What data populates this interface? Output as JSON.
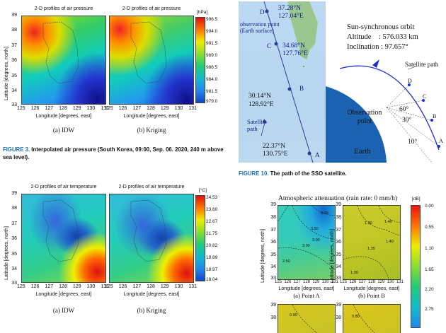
{
  "fig3": {
    "plot_title": "2-D profiles of air pressure",
    "unit": "[hPa]",
    "colorbar_ticks": [
      "996.5",
      "994.0",
      "991.5",
      "989.0",
      "986.5",
      "984.0",
      "981.5",
      "979.0"
    ],
    "y_ticks": [
      "39",
      "38",
      "37",
      "36",
      "35",
      "34",
      "33"
    ],
    "x_ticks": [
      "125",
      "126",
      "127",
      "128",
      "129",
      "130",
      "131"
    ],
    "ylabel": "Latitude [degrees, north]",
    "xlabel": "Longitude [degrees, east]",
    "sub_a": "(a) IDW",
    "sub_b": "(b) Kriging",
    "caption_label": "FIGURE 3.",
    "caption_text": "Interpolated air pressure (South Korea, 09:00, Sep. 06. 2020, 240 m above sea level)."
  },
  "fig4": {
    "plot_title": "2-D profiles of air temperature",
    "unit": "[°C]",
    "colorbar_ticks": [
      "24.53",
      "23.60",
      "22.67",
      "21.75",
      "20.82",
      "19.89",
      "18.97",
      "18.04"
    ],
    "y_ticks": [
      "39",
      "38",
      "37",
      "36",
      "35",
      "34",
      "33"
    ],
    "x_ticks": [
      "125",
      "126",
      "127",
      "128",
      "129",
      "130",
      "131"
    ],
    "ylabel": "Latitude [degrees, north]",
    "xlabel": "Longitude [degrees, east]",
    "sub_a": "(a) IDW",
    "sub_b": "(b) Kriging"
  },
  "fig10": {
    "caption_label": "FIGURE 10.",
    "caption_text": "The path of the SSO satellite.",
    "map": {
      "point_d": "D",
      "d_coords": "37.28°N 127.04°E",
      "obs_label": "observation point (Earth surface)",
      "point_c": "C",
      "c_coords": "34.68°N 127.76°E",
      "point_b": "B",
      "b_coords": "30.14°N 128.92°E",
      "sat_path": "Satellite path",
      "point_a": "A",
      "a_coords": "22.37°N 130.75°E"
    },
    "orbit": {
      "title": "Sun-synchronous orbit",
      "altitude": "Altitude    : 576.033 km",
      "inclination": "Inclination : 97.657°",
      "sat_path": "Satellite path",
      "obs_point": "Observation point",
      "earth": "Earth",
      "angle_60": "60°",
      "angle_30": "30°",
      "angle_10": "10°",
      "pts": [
        "D",
        "C",
        "B",
        "A"
      ]
    }
  },
  "fig11": {
    "plot_title": "Atmospheric attenuation (rain rate: 0 mm/h)",
    "unit": "[dB]",
    "colorbar_ticks": [
      "0.00",
      "0.55",
      "1.10",
      "1.65",
      "2.20",
      "2.75"
    ],
    "y_ticks": [
      "39",
      "38",
      "37",
      "36",
      "35",
      "34",
      "33"
    ],
    "x_ticks": [
      "125",
      "126",
      "127",
      "128",
      "129",
      "130",
      "131"
    ],
    "ylabel": "Latitude [degrees, north]",
    "xlabel": "Longitude [degrees, east]",
    "sub_a": "(a) Point A",
    "sub_b": "(b) Point B",
    "contours_a": [
      "4.00",
      "3.50",
      "3.00",
      "3.00",
      "2.50"
    ],
    "contours_b": [
      "1.30",
      "1.40",
      "1.40",
      "1.35",
      "1.30"
    ],
    "contours_c": [
      "0.90"
    ],
    "contours_d": [
      "0.80"
    ]
  }
}
